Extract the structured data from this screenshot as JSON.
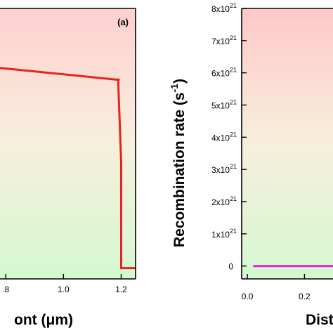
{
  "chart_data": [
    {
      "type": "line",
      "panel_label": "(a)",
      "xlabel": "ont (μm)",
      "ylabel": "",
      "x_ticks": [
        ".8",
        "1.0",
        "1.2"
      ],
      "x_tick_values": [
        0.8,
        1.0,
        1.2
      ],
      "xlim": [
        0.78,
        1.25
      ],
      "ylim": [
        0,
        1
      ],
      "grid": false,
      "background_gradient": {
        "top": "#ffd0d0",
        "bottom": "#d4f8d0"
      },
      "series": [
        {
          "color": "#e8231f",
          "x": [
            0.78,
            1.19,
            1.19,
            1.2,
            1.2,
            1.25
          ],
          "y": [
            0.78,
            0.736,
            0.72,
            0.43,
            0.04,
            0.04
          ]
        }
      ]
    },
    {
      "type": "line",
      "ylabel": "Recombination rate (s",
      "ylabel_superscript": "-1",
      "ylabel_close": ")",
      "xlabel": "Dista",
      "x_ticks": [
        "0.0",
        "0.2"
      ],
      "x_tick_values": [
        0.0,
        0.2
      ],
      "xlim": [
        -0.02,
        0.3
      ],
      "ylim": [
        -4e+20,
        8e+21
      ],
      "y_ticks": [
        {
          "value": 0,
          "base": "0",
          "exp": ""
        },
        {
          "value": 1e+21,
          "base": "1x10",
          "exp": "21"
        },
        {
          "value": 2e+21,
          "base": "2x10",
          "exp": "21"
        },
        {
          "value": 3e+21,
          "base": "3x10",
          "exp": "21"
        },
        {
          "value": 4e+21,
          "base": "4x10",
          "exp": "21"
        },
        {
          "value": 5e+21,
          "base": "5x10",
          "exp": "21"
        },
        {
          "value": 6e+21,
          "base": "6x10",
          "exp": "21"
        },
        {
          "value": 7e+21,
          "base": "7x10",
          "exp": "21"
        },
        {
          "value": 8e+21,
          "base": "8x10",
          "exp": "21"
        }
      ],
      "grid": false,
      "background_gradient": {
        "top": "#ffc8c8",
        "bottom": "#d4f8d0"
      },
      "series": [
        {
          "color": "#e020e0",
          "x": [
            0.02,
            0.3
          ],
          "y": [
            0,
            0
          ]
        }
      ]
    }
  ]
}
